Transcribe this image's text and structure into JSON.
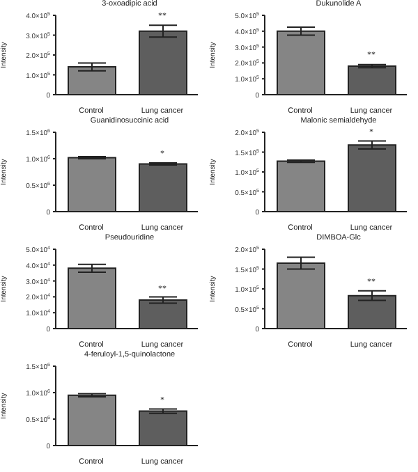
{
  "chart_data": [
    {
      "type": "bar",
      "title": "3-oxoadipic acid",
      "ylabel": "Intensity",
      "categories": [
        "Control",
        "Lung cancer"
      ],
      "values": [
        140000,
        320000
      ],
      "errors": [
        20000,
        30000
      ],
      "colors": [
        "#858585",
        "#5e5e5e"
      ],
      "ylim": [
        0,
        400000
      ],
      "yticks": [
        {
          "value": 0,
          "label": "0"
        },
        {
          "value": 100000,
          "label": "1.0×10$^{5}$"
        },
        {
          "value": 200000,
          "label": "2.0×10$^{5}$"
        },
        {
          "value": 300000,
          "label": "3.0×10$^{5}$"
        },
        {
          "value": 400000,
          "label": "4.0×10$^{5}$"
        }
      ],
      "annotations": [
        {
          "text": "**",
          "x": "Lung cancer",
          "y": 350000
        }
      ],
      "grid": false,
      "legend": false
    },
    {
      "type": "bar",
      "title": "Dukunolide A",
      "ylabel": "Intensity",
      "categories": [
        "Control",
        "Lung cancer"
      ],
      "values": [
        400000,
        180000
      ],
      "errors": [
        25000,
        10000
      ],
      "colors": [
        "#858585",
        "#5e5e5e"
      ],
      "ylim": [
        0,
        500000
      ],
      "yticks": [
        {
          "value": 0,
          "label": "0"
        },
        {
          "value": 100000,
          "label": "1.0×10$^{5}$"
        },
        {
          "value": 200000,
          "label": "2.0×10$^{5}$"
        },
        {
          "value": 300000,
          "label": "3.0×10$^{5}$"
        },
        {
          "value": 400000,
          "label": "4.0×10$^{5}$"
        },
        {
          "value": 500000,
          "label": "5.0×10$^{5}$"
        }
      ],
      "annotations": [
        {
          "text": "**",
          "x": "Lung cancer",
          "y": 195000
        }
      ],
      "grid": false,
      "legend": false
    },
    {
      "type": "bar",
      "title": "Guanidinosuccinic acid",
      "ylabel": "Intensity",
      "categories": [
        "Control",
        "Lung cancer"
      ],
      "values": [
        1020000,
        900000
      ],
      "errors": [
        20000,
        20000
      ],
      "colors": [
        "#858585",
        "#5e5e5e"
      ],
      "ylim": [
        0,
        1500000
      ],
      "yticks": [
        {
          "value": 0,
          "label": "0"
        },
        {
          "value": 500000,
          "label": "0.5×10$^{6}$"
        },
        {
          "value": 1000000,
          "label": "1.0×10$^{6}$"
        },
        {
          "value": 1500000,
          "label": "1.5×10$^{6}$"
        }
      ],
      "annotations": [
        {
          "text": "*",
          "x": "Lung cancer",
          "y": 920000
        }
      ],
      "grid": false,
      "legend": false
    },
    {
      "type": "bar",
      "title": "Malonic semialdehyde",
      "ylabel": "Intensity",
      "categories": [
        "Control",
        "Lung cancer"
      ],
      "values": [
        127000,
        168000
      ],
      "errors": [
        3000,
        10000
      ],
      "colors": [
        "#858585",
        "#5e5e5e"
      ],
      "ylim": [
        0,
        200000
      ],
      "yticks": [
        {
          "value": 0,
          "label": "0"
        },
        {
          "value": 50000,
          "label": "0.5×10$^{5}$"
        },
        {
          "value": 100000,
          "label": "1.0×10$^{5}$"
        },
        {
          "value": 150000,
          "label": "1.5×10$^{5}$"
        },
        {
          "value": 200000,
          "label": "2.0×10$^{5}$"
        }
      ],
      "annotations": [
        {
          "text": "*",
          "x": "Lung cancer",
          "y": 178000
        }
      ],
      "grid": false,
      "legend": false
    },
    {
      "type": "bar",
      "title": "Pseudouridine",
      "ylabel": "Intensity",
      "categories": [
        "Control",
        "Lung cancer"
      ],
      "values": [
        38000,
        18000
      ],
      "errors": [
        2500,
        2000
      ],
      "colors": [
        "#858585",
        "#5e5e5e"
      ],
      "ylim": [
        0,
        50000
      ],
      "yticks": [
        {
          "value": 0,
          "label": "0"
        },
        {
          "value": 10000,
          "label": "1.0×10$^{4}$"
        },
        {
          "value": 20000,
          "label": "2.0×10$^{4}$"
        },
        {
          "value": 30000,
          "label": "3.0×10$^{4}$"
        },
        {
          "value": 40000,
          "label": "4.0×10$^{4}$"
        },
        {
          "value": 50000,
          "label": "5.0×10$^{4}$"
        }
      ],
      "annotations": [
        {
          "text": "**",
          "x": "Lung cancer",
          "y": 19500
        }
      ],
      "grid": false,
      "legend": false
    },
    {
      "type": "bar",
      "title": "DIMBOA-Glc",
      "ylabel": "Intensity",
      "categories": [
        "Control",
        "Lung cancer"
      ],
      "values": [
        165000,
        83000
      ],
      "errors": [
        15000,
        12000
      ],
      "colors": [
        "#858585",
        "#5e5e5e"
      ],
      "ylim": [
        0,
        200000
      ],
      "yticks": [
        {
          "value": 0,
          "label": "0"
        },
        {
          "value": 50000,
          "label": "0.5×10$^{5}$"
        },
        {
          "value": 100000,
          "label": "1.0×10$^{5}$"
        },
        {
          "value": 150000,
          "label": "1.5×10$^{5}$"
        },
        {
          "value": 200000,
          "label": "2.0×10$^{5}$"
        }
      ],
      "annotations": [
        {
          "text": "**",
          "x": "Lung cancer",
          "y": 95000
        }
      ],
      "grid": false,
      "legend": false
    },
    {
      "type": "bar",
      "title": "4-feruloyl-1,5-quinolactone",
      "ylabel": "Intensity",
      "categories": [
        "Control",
        "Lung cancer"
      ],
      "values": [
        950000,
        650000
      ],
      "errors": [
        30000,
        40000
      ],
      "colors": [
        "#858585",
        "#5e5e5e"
      ],
      "ylim": [
        0,
        1500000
      ],
      "yticks": [
        {
          "value": 0,
          "label": "0"
        },
        {
          "value": 500000,
          "label": "0.5×10$^{6}$"
        },
        {
          "value": 1000000,
          "label": "1.0×10$^{6}$"
        },
        {
          "value": 1500000,
          "label": "1.5×10$^{6}$"
        }
      ],
      "annotations": [
        {
          "text": "*",
          "x": "Lung cancer",
          "y": 690000
        }
      ],
      "grid": false,
      "legend": false
    }
  ]
}
